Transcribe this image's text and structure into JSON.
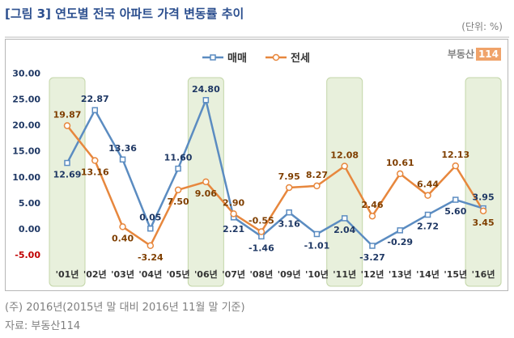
{
  "header": {
    "title": "[그림 3] 연도별 전국 아파트 가격 변동률 추이",
    "unit": "(단위: %)",
    "brand_text": "부동산",
    "brand_num": "114"
  },
  "footer": {
    "note": "(주) 2016년(2015년 말 대비 2016년 11월 말 기준)",
    "source": "자료: 부동산114"
  },
  "colors": {
    "sale": "#5b8cc1",
    "jeonse": "#e7873d",
    "highlight_fill": "#e8f0dc",
    "highlight_border": "#c3d6a8",
    "ytick": "#1f3864",
    "ytick_negative": "#c00000"
  },
  "chart_data": {
    "type": "line",
    "categories": [
      "'01년",
      "'02년",
      "'03년",
      "'04년",
      "'05년",
      "'06년",
      "'07년",
      "'08년",
      "'09년",
      "'10년",
      "'11년",
      "'12년",
      "'13년",
      "'14년",
      "'15년",
      "'16년"
    ],
    "series": [
      {
        "name": "매매",
        "values": [
          12.69,
          22.87,
          13.36,
          0.05,
          11.6,
          24.8,
          2.21,
          -1.46,
          3.16,
          -1.01,
          2.04,
          -3.27,
          -0.29,
          2.72,
          5.6,
          3.95
        ],
        "labels": [
          "12.69",
          "22.87",
          "13.36",
          "0.05",
          "11.60",
          "24.80",
          "2.21",
          "-1.46",
          "3.16",
          "-1.01",
          "2.04",
          "-3.27",
          "-0.29",
          "2.72",
          "5.60",
          "3.95"
        ]
      },
      {
        "name": "전세",
        "values": [
          19.87,
          13.16,
          0.4,
          -3.24,
          7.5,
          9.06,
          2.9,
          -0.55,
          7.95,
          8.27,
          12.08,
          2.46,
          10.61,
          6.44,
          12.13,
          3.45
        ],
        "labels": [
          "19.87",
          "13.16",
          "0.40",
          "-3.24",
          "7.50",
          "9.06",
          "2.90",
          "-0.55",
          "7.95",
          "8.27",
          "12.08",
          "2.46",
          "10.61",
          "6.44",
          "12.13",
          "3.45"
        ]
      }
    ],
    "yticks": [
      "30.00",
      "25.00",
      "20.00",
      "15.00",
      "10.00",
      "5.00",
      "0.00",
      "-5.00"
    ],
    "ylim": [
      -5,
      30
    ],
    "highlighted_categories": [
      "'01년",
      "'06년",
      "'11년",
      "'16년"
    ],
    "legend_position": "top-center",
    "grid": false
  }
}
